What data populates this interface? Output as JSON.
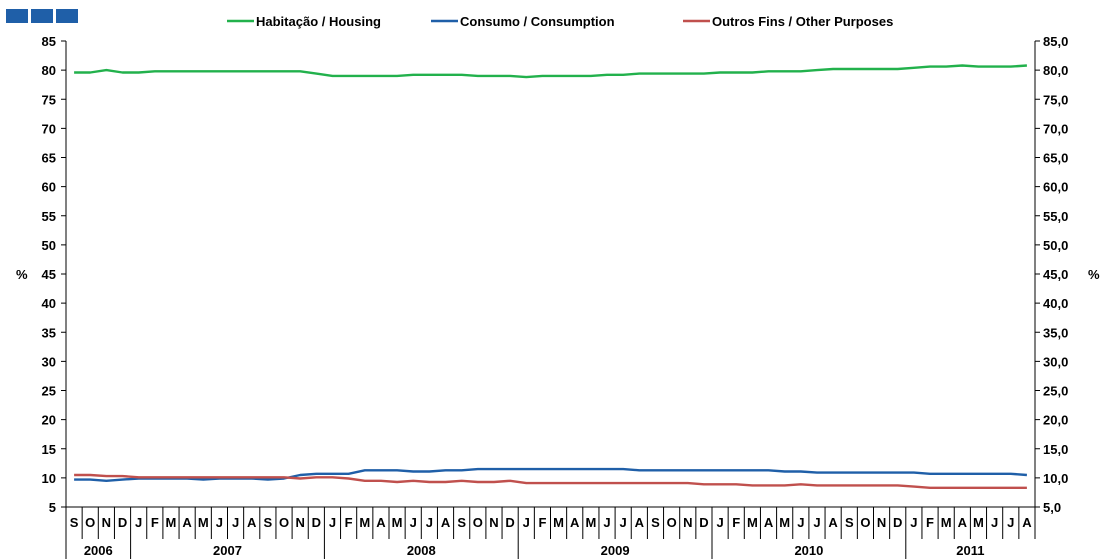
{
  "chart_data": {
    "type": "line",
    "ylabel_left": "%",
    "ylabel_right": "%",
    "ylim": [
      5,
      85
    ],
    "y_ticks_left": [
      "5",
      "10",
      "15",
      "20",
      "25",
      "30",
      "35",
      "40",
      "45",
      "50",
      "55",
      "60",
      "65",
      "70",
      "75",
      "80",
      "85"
    ],
    "y_ticks_right": [
      "5,0",
      "10,0",
      "15,0",
      "20,0",
      "25,0",
      "30,0",
      "35,0",
      "40,0",
      "45,0",
      "50,0",
      "55,0",
      "60,0",
      "65,0",
      "70,0",
      "75,0",
      "80,0",
      "85,0"
    ],
    "months": [
      "S",
      "O",
      "N",
      "D",
      "J",
      "F",
      "M",
      "A",
      "M",
      "J",
      "J",
      "A",
      "S",
      "O",
      "N",
      "D",
      "J",
      "F",
      "M",
      "A",
      "M",
      "J",
      "J",
      "A",
      "S",
      "O",
      "N",
      "D",
      "J",
      "F",
      "M",
      "A",
      "M",
      "J",
      "J",
      "A",
      "S",
      "O",
      "N",
      "D",
      "J",
      "F",
      "M",
      "A",
      "M",
      "J",
      "J",
      "A",
      "S",
      "O",
      "N",
      "D",
      "J",
      "F",
      "M",
      "A",
      "M",
      "J",
      "J",
      "A"
    ],
    "years": [
      {
        "label": "2006",
        "start": 0,
        "count": 4
      },
      {
        "label": "2007",
        "start": 4,
        "count": 12
      },
      {
        "label": "2008",
        "start": 16,
        "count": 12
      },
      {
        "label": "2009",
        "start": 28,
        "count": 12
      },
      {
        "label": "2010",
        "start": 40,
        "count": 12
      },
      {
        "label": "2011",
        "start": 52,
        "count": 8
      }
    ],
    "legend_position": "top",
    "grid": false,
    "series": [
      {
        "name": "Habitação / Housing",
        "color": "#22b14c",
        "values": [
          79.6,
          79.6,
          80.0,
          79.6,
          79.6,
          79.8,
          79.8,
          79.8,
          79.8,
          79.8,
          79.8,
          79.8,
          79.8,
          79.8,
          79.8,
          79.4,
          79.0,
          79.0,
          79.0,
          79.0,
          79.0,
          79.2,
          79.2,
          79.2,
          79.2,
          79.0,
          79.0,
          79.0,
          78.8,
          79.0,
          79.0,
          79.0,
          79.0,
          79.2,
          79.2,
          79.4,
          79.4,
          79.4,
          79.4,
          79.4,
          79.6,
          79.6,
          79.6,
          79.8,
          79.8,
          79.8,
          80.0,
          80.2,
          80.2,
          80.2,
          80.2,
          80.2,
          80.4,
          80.6,
          80.6,
          80.8,
          80.6,
          80.6,
          80.6,
          80.8
        ]
      },
      {
        "name": "Consumo / Consumption",
        "color": "#1f5fa8",
        "values": [
          9.7,
          9.7,
          9.5,
          9.7,
          9.9,
          9.9,
          9.9,
          9.9,
          9.7,
          9.9,
          9.9,
          9.9,
          9.7,
          9.9,
          10.5,
          10.7,
          10.7,
          10.7,
          11.3,
          11.3,
          11.3,
          11.1,
          11.1,
          11.3,
          11.3,
          11.5,
          11.5,
          11.5,
          11.5,
          11.5,
          11.5,
          11.5,
          11.5,
          11.5,
          11.5,
          11.3,
          11.3,
          11.3,
          11.3,
          11.3,
          11.3,
          11.3,
          11.3,
          11.3,
          11.1,
          11.1,
          10.9,
          10.9,
          10.9,
          10.9,
          10.9,
          10.9,
          10.9,
          10.7,
          10.7,
          10.7,
          10.7,
          10.7,
          10.7,
          10.5
        ]
      },
      {
        "name": "Outros Fins / Other Purposes",
        "color": "#c0504d",
        "values": [
          10.5,
          10.5,
          10.3,
          10.3,
          10.1,
          10.1,
          10.1,
          10.1,
          10.1,
          10.1,
          10.1,
          10.1,
          10.1,
          10.1,
          9.9,
          10.1,
          10.1,
          9.9,
          9.5,
          9.5,
          9.3,
          9.5,
          9.3,
          9.3,
          9.5,
          9.3,
          9.3,
          9.5,
          9.1,
          9.1,
          9.1,
          9.1,
          9.1,
          9.1,
          9.1,
          9.1,
          9.1,
          9.1,
          9.1,
          8.9,
          8.9,
          8.9,
          8.7,
          8.7,
          8.7,
          8.9,
          8.7,
          8.7,
          8.7,
          8.7,
          8.7,
          8.7,
          8.5,
          8.3,
          8.3,
          8.3,
          8.3,
          8.3,
          8.3,
          8.3
        ]
      }
    ]
  }
}
